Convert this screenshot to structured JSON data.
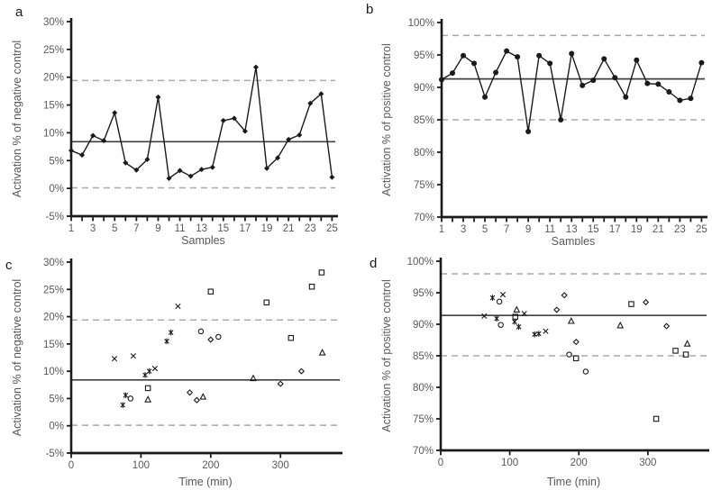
{
  "colors": {
    "marker": "#1a1a1a",
    "series_line": "#1a1a1a",
    "axis": "#1a1a1a",
    "center_line": "#404040",
    "dashed_limit": "#a8a8a8",
    "tick_label": "#595959",
    "axis_title": "#595959"
  },
  "chart_data": [
    {
      "panel_label": "a",
      "type": "line",
      "marker": "filled-diamond",
      "xlabel": "Samples",
      "ylabel": "Activation % of negative control",
      "xlim": [
        1,
        25.3
      ],
      "ylim": [
        -5,
        30
      ],
      "ytick_step": 5,
      "ytick_suffix": "%",
      "xticks_labeled": [
        1,
        3,
        5,
        7,
        9,
        11,
        13,
        15,
        17,
        19,
        21,
        23,
        25
      ],
      "x": [
        1,
        2,
        3,
        4,
        5,
        6,
        7,
        8,
        9,
        10,
        11,
        12,
        13,
        14,
        15,
        16,
        17,
        18,
        19,
        20,
        21,
        22,
        23,
        24,
        25
      ],
      "values": [
        6.8,
        6.0,
        9.5,
        8.6,
        13.6,
        4.6,
        3.3,
        5.2,
        16.4,
        1.8,
        3.2,
        2.2,
        3.4,
        3.8,
        12.2,
        12.6,
        10.3,
        21.8,
        3.6,
        5.5,
        8.8,
        9.6,
        15.3,
        17.0,
        2.0
      ],
      "limits": {
        "center": 8.4,
        "upper": 19.4,
        "lower": 0.1
      }
    },
    {
      "panel_label": "b",
      "type": "line",
      "marker": "filled-circle",
      "xlabel": "Samples",
      "ylabel": "Activation % of positive control",
      "xlim": [
        1,
        25.3
      ],
      "ylim": [
        70,
        100
      ],
      "ytick_step": 5,
      "ytick_suffix": "%",
      "xticks_labeled": [
        1,
        3,
        5,
        7,
        9,
        11,
        13,
        15,
        17,
        19,
        21,
        23,
        25
      ],
      "x": [
        1,
        2,
        3,
        4,
        5,
        6,
        7,
        8,
        9,
        10,
        11,
        12,
        13,
        14,
        15,
        16,
        17,
        18,
        19,
        20,
        21,
        22,
        23,
        24,
        25
      ],
      "values": [
        91.2,
        92.2,
        94.9,
        93.7,
        88.5,
        92.3,
        95.6,
        94.7,
        83.2,
        94.9,
        93.7,
        85.0,
        95.2,
        90.3,
        91.1,
        94.4,
        91.5,
        88.5,
        94.2,
        90.6,
        90.5,
        89.3,
        88.0,
        88.3,
        93.8
      ],
      "limits": {
        "center": 91.3,
        "upper": 98.0,
        "lower": 85.0
      }
    },
    {
      "panel_label": "c",
      "type": "scatter",
      "xlabel": "Time (min)",
      "ylabel": "Activation % of negative control",
      "xlim": [
        0,
        385
      ],
      "ylim": [
        -5,
        30
      ],
      "ytick_step": 5,
      "ytick_suffix": "%",
      "xticks_labeled": [
        0,
        100,
        200,
        300
      ],
      "series": [
        {
          "marker": "asterisk",
          "points": [
            [
              74,
              3.8
            ],
            [
              78,
              5.6
            ],
            [
              106,
              9.3
            ],
            [
              112,
              10.0
            ],
            [
              137,
              15.5
            ],
            [
              143,
              17.1
            ]
          ]
        },
        {
          "marker": "x",
          "points": [
            [
              62,
              12.3
            ],
            [
              89,
              12.8
            ],
            [
              120,
              10.5
            ],
            [
              153,
              21.9
            ]
          ]
        },
        {
          "marker": "circle",
          "points": [
            [
              85,
              5.0
            ],
            [
              186,
              17.3
            ],
            [
              211,
              16.3
            ]
          ]
        },
        {
          "marker": "diamond",
          "points": [
            [
              170,
              6.1
            ],
            [
              180,
              4.7
            ],
            [
              200,
              15.8
            ],
            [
              300,
              7.7
            ],
            [
              330,
              10.0
            ]
          ]
        },
        {
          "marker": "square",
          "points": [
            [
              110,
              6.9
            ],
            [
              200,
              24.6
            ],
            [
              280,
              22.6
            ],
            [
              315,
              16.1
            ],
            [
              345,
              25.5
            ],
            [
              359,
              28.1
            ]
          ]
        },
        {
          "marker": "triangle",
          "points": [
            [
              110,
              4.8
            ],
            [
              189,
              5.3
            ],
            [
              261,
              8.7
            ],
            [
              360,
              13.4
            ]
          ]
        }
      ],
      "limits": {
        "center": 8.4,
        "upper": 19.4,
        "lower": 0.1
      }
    },
    {
      "panel_label": "d",
      "type": "scatter",
      "xlabel": "Time (min)",
      "ylabel": "Activation % of positive control",
      "xlim": [
        0,
        385
      ],
      "ylim": [
        70,
        100
      ],
      "ytick_step": 5,
      "ytick_suffix": "%",
      "xticks_labeled": [
        0,
        100,
        200,
        300
      ],
      "series": [
        {
          "marker": "asterisk",
          "points": [
            [
              75,
              94.2
            ],
            [
              81,
              90.9
            ],
            [
              107,
              90.4
            ],
            [
              113,
              89.6
            ],
            [
              136,
              88.4
            ],
            [
              142,
              88.5
            ]
          ]
        },
        {
          "marker": "x",
          "points": [
            [
              63,
              91.3
            ],
            [
              90,
              94.7
            ],
            [
              121,
              91.7
            ],
            [
              152,
              88.9
            ]
          ]
        },
        {
          "marker": "circle",
          "points": [
            [
              85,
              93.6
            ],
            [
              87,
              89.9
            ],
            [
              186,
              85.2
            ],
            [
              210,
              82.5
            ]
          ]
        },
        {
          "marker": "diamond",
          "points": [
            [
              168,
              92.3
            ],
            [
              179,
              94.6
            ],
            [
              196,
              87.2
            ],
            [
              297,
              93.5
            ],
            [
              327,
              89.7
            ]
          ]
        },
        {
          "marker": "square",
          "points": [
            [
              108,
              91.2
            ],
            [
              196,
              84.6
            ],
            [
              276,
              93.2
            ],
            [
              312,
              75.0
            ],
            [
              340,
              85.8
            ],
            [
              355,
              85.2
            ]
          ]
        },
        {
          "marker": "triangle",
          "points": [
            [
              110,
              92.3
            ],
            [
              189,
              90.5
            ],
            [
              260,
              89.8
            ],
            [
              357,
              86.9
            ]
          ]
        }
      ],
      "limits": {
        "center": 91.4,
        "upper": 98.0,
        "lower": 85.0
      }
    }
  ]
}
